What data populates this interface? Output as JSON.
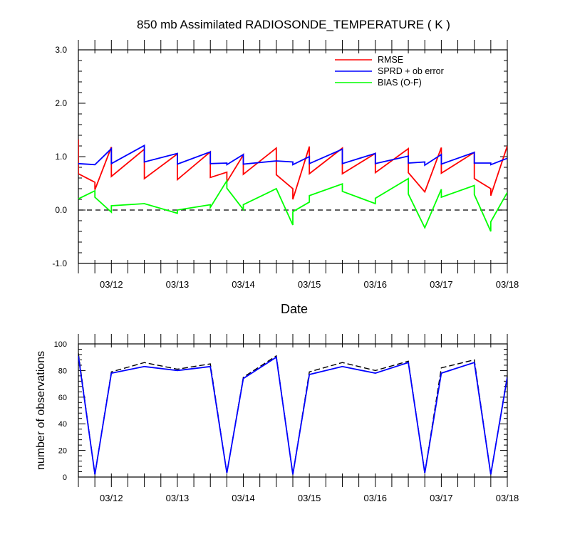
{
  "title": "850 mb Assimilated RADIOSONDE_TEMPERATURE ( K )",
  "chart_data": [
    {
      "type": "line",
      "title": "850 mb Assimilated RADIOSONDE_TEMPERATURE ( K )",
      "xlabel": "Date",
      "ylabel": "",
      "xlim": [
        "03/11 12:00",
        "03/18 00:00"
      ],
      "ylim": [
        -1.0,
        3.0
      ],
      "y_ticks": [
        "-1.0",
        "0.0",
        "1.0",
        "2.0",
        "3.0"
      ],
      "x_ticks": [
        "03/12",
        "03/13",
        "03/14",
        "03/15",
        "03/16",
        "03/17",
        "03/18"
      ],
      "zero_line": {
        "y": 0.0,
        "style": "dashed",
        "color": "#000000"
      },
      "legend": {
        "placement": "top-right"
      },
      "grid": false,
      "series": [
        {
          "name": "RMSE",
          "color": "#ff0000",
          "points": [
            [
              "03/11 12:00",
              1.32
            ],
            [
              "03/11 12:00",
              0.68
            ],
            [
              "03/11 18:00",
              0.52
            ],
            [
              "03/11 18:00",
              0.38
            ],
            [
              "03/12 00:00",
              1.18
            ],
            [
              "03/12 00:00",
              0.63
            ],
            [
              "03/12 12:00",
              1.14
            ],
            [
              "03/12 12:00",
              0.59
            ],
            [
              "03/13 00:00",
              1.05
            ],
            [
              "03/13 00:00",
              0.57
            ],
            [
              "03/13 12:00",
              1.09
            ],
            [
              "03/13 12:00",
              0.61
            ],
            [
              "03/13 18:00",
              0.71
            ],
            [
              "03/13 18:00",
              0.53
            ],
            [
              "03/14 00:00",
              1.03
            ],
            [
              "03/14 00:00",
              0.67
            ],
            [
              "03/14 12:00",
              1.16
            ],
            [
              "03/14 12:00",
              0.66
            ],
            [
              "03/14 18:00",
              0.4
            ],
            [
              "03/14 18:00",
              0.2
            ],
            [
              "03/15 00:00",
              1.19
            ],
            [
              "03/15 00:00",
              0.68
            ],
            [
              "03/15 12:00",
              1.16
            ],
            [
              "03/15 12:00",
              0.68
            ],
            [
              "03/16 00:00",
              1.06
            ],
            [
              "03/16 00:00",
              0.7
            ],
            [
              "03/16 12:00",
              1.15
            ],
            [
              "03/16 12:00",
              0.7
            ],
            [
              "03/16 18:00",
              0.34
            ],
            [
              "03/17 00:00",
              1.17
            ],
            [
              "03/17 00:00",
              0.69
            ],
            [
              "03/17 12:00",
              1.08
            ],
            [
              "03/17 12:00",
              0.59
            ],
            [
              "03/17 18:00",
              0.4
            ],
            [
              "03/17 18:00",
              0.27
            ],
            [
              "03/18 00:00",
              1.2
            ]
          ]
        },
        {
          "name": "SPRD + ob error",
          "color": "#0000ff",
          "points": [
            [
              "03/11 12:00",
              0.87
            ],
            [
              "03/11 18:00",
              0.85
            ],
            [
              "03/12 00:00",
              1.15
            ],
            [
              "03/12 00:00",
              0.87
            ],
            [
              "03/12 12:00",
              1.21
            ],
            [
              "03/12 12:00",
              0.9
            ],
            [
              "03/13 00:00",
              1.06
            ],
            [
              "03/13 00:00",
              0.86
            ],
            [
              "03/13 12:00",
              1.09
            ],
            [
              "03/13 12:00",
              0.87
            ],
            [
              "03/13 18:00",
              0.88
            ],
            [
              "03/13 18:00",
              0.85
            ],
            [
              "03/14 00:00",
              1.04
            ],
            [
              "03/14 00:00",
              0.86
            ],
            [
              "03/14 12:00",
              0.92
            ],
            [
              "03/14 18:00",
              0.9
            ],
            [
              "03/14 18:00",
              0.85
            ],
            [
              "03/15 00:00",
              1.0
            ],
            [
              "03/15 00:00",
              0.87
            ],
            [
              "03/15 12:00",
              1.14
            ],
            [
              "03/15 12:00",
              0.87
            ],
            [
              "03/16 00:00",
              1.06
            ],
            [
              "03/16 00:00",
              0.87
            ],
            [
              "03/16 12:00",
              1.01
            ],
            [
              "03/16 12:00",
              0.88
            ],
            [
              "03/16 18:00",
              0.9
            ],
            [
              "03/16 18:00",
              0.84
            ],
            [
              "03/17 00:00",
              1.04
            ],
            [
              "03/17 00:00",
              0.86
            ],
            [
              "03/17 12:00",
              1.08
            ],
            [
              "03/17 12:00",
              0.88
            ],
            [
              "03/17 18:00",
              0.88
            ],
            [
              "03/17 18:00",
              0.85
            ],
            [
              "03/18 00:00",
              0.97
            ]
          ]
        },
        {
          "name": "BIAS (O-F)",
          "color": "#00ff00",
          "points": [
            [
              "03/11 12:00",
              0.21
            ],
            [
              "03/11 18:00",
              0.36
            ],
            [
              "03/11 18:00",
              0.24
            ],
            [
              "03/12 00:00",
              -0.04
            ],
            [
              "03/12 00:00",
              0.08
            ],
            [
              "03/12 12:00",
              0.12
            ],
            [
              "03/13 00:00",
              -0.06
            ],
            [
              "03/13 00:00",
              0.0
            ],
            [
              "03/13 12:00",
              0.1
            ],
            [
              "03/13 12:00",
              0.05
            ],
            [
              "03/13 18:00",
              0.55
            ],
            [
              "03/13 18:00",
              0.41
            ],
            [
              "03/14 00:00",
              0.01
            ],
            [
              "03/14 00:00",
              0.1
            ],
            [
              "03/14 12:00",
              0.4
            ],
            [
              "03/14 18:00",
              -0.28
            ],
            [
              "03/14 18:00",
              -0.03
            ],
            [
              "03/15 00:00",
              0.15
            ],
            [
              "03/15 00:00",
              0.27
            ],
            [
              "03/15 12:00",
              0.49
            ],
            [
              "03/15 12:00",
              0.35
            ],
            [
              "03/16 00:00",
              0.12
            ],
            [
              "03/16 00:00",
              0.22
            ],
            [
              "03/16 12:00",
              0.59
            ],
            [
              "03/16 12:00",
              0.3
            ],
            [
              "03/16 18:00",
              -0.33
            ],
            [
              "03/17 00:00",
              0.39
            ],
            [
              "03/17 00:00",
              0.24
            ],
            [
              "03/17 12:00",
              0.46
            ],
            [
              "03/17 12:00",
              0.29
            ],
            [
              "03/17 18:00",
              -0.4
            ],
            [
              "03/17 18:00",
              -0.22
            ],
            [
              "03/18 00:00",
              0.33
            ]
          ]
        }
      ]
    },
    {
      "type": "line",
      "title": "",
      "xlabel": "",
      "ylabel": "number of observations",
      "xlim": [
        "03/11 12:00",
        "03/18 00:00"
      ],
      "ylim": [
        0,
        100
      ],
      "y_ticks": [
        "0",
        "20",
        "40",
        "60",
        "80",
        "100"
      ],
      "x_ticks": [
        "03/12",
        "03/13",
        "03/14",
        "03/15",
        "03/16",
        "03/17",
        "03/18"
      ],
      "grid": false,
      "series": [
        {
          "name": "",
          "color": "#000000",
          "style": "dashed",
          "points": [
            [
              "03/11 12:00",
              93
            ],
            [
              "03/11 18:00",
              2
            ],
            [
              "03/12 00:00",
              79
            ],
            [
              "03/12 12:00",
              86
            ],
            [
              "03/13 00:00",
              81
            ],
            [
              "03/13 12:00",
              85
            ],
            [
              "03/13 18:00",
              3
            ],
            [
              "03/14 00:00",
              75
            ],
            [
              "03/14 12:00",
              91
            ],
            [
              "03/14 18:00",
              2
            ],
            [
              "03/15 00:00",
              79
            ],
            [
              "03/15 12:00",
              86
            ],
            [
              "03/16 00:00",
              80
            ],
            [
              "03/16 12:00",
              87
            ],
            [
              "03/16 18:00",
              3
            ],
            [
              "03/17 00:00",
              82
            ],
            [
              "03/17 12:00",
              88
            ],
            [
              "03/17 18:00",
              2
            ],
            [
              "03/18 00:00",
              76
            ]
          ]
        },
        {
          "name": "",
          "color": "#0000ff",
          "style": "solid",
          "points": [
            [
              "03/11 12:00",
              91
            ],
            [
              "03/11 18:00",
              2
            ],
            [
              "03/12 00:00",
              78
            ],
            [
              "03/12 12:00",
              83
            ],
            [
              "03/13 00:00",
              80
            ],
            [
              "03/13 12:00",
              83
            ],
            [
              "03/13 18:00",
              3
            ],
            [
              "03/14 00:00",
              74
            ],
            [
              "03/14 12:00",
              90
            ],
            [
              "03/14 18:00",
              2
            ],
            [
              "03/15 00:00",
              77
            ],
            [
              "03/15 12:00",
              83
            ],
            [
              "03/16 00:00",
              78
            ],
            [
              "03/16 12:00",
              86
            ],
            [
              "03/16 18:00",
              3
            ],
            [
              "03/17 00:00",
              78
            ],
            [
              "03/17 12:00",
              86
            ],
            [
              "03/17 18:00",
              2
            ],
            [
              "03/18 00:00",
              75
            ]
          ]
        }
      ]
    }
  ]
}
